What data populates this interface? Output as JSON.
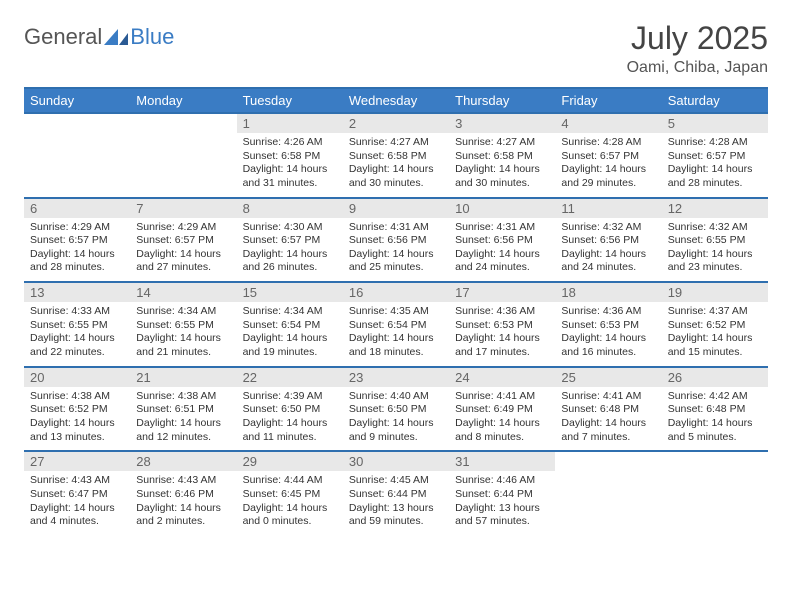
{
  "logo": {
    "text1": "General",
    "text2": "Blue"
  },
  "title": "July 2025",
  "location": "Oami, Chiba, Japan",
  "colors": {
    "header_bg": "#3a7cc4",
    "border": "#2f6faf",
    "daynum_bg": "#e8e8e8",
    "text": "#333333",
    "logo_gray": "#555555",
    "logo_blue": "#3a7cc4",
    "page_bg": "#ffffff"
  },
  "weekdays": [
    "Sunday",
    "Monday",
    "Tuesday",
    "Wednesday",
    "Thursday",
    "Friday",
    "Saturday"
  ],
  "weeks": [
    [
      {
        "n": "",
        "sr": "",
        "ss": "",
        "dl": ""
      },
      {
        "n": "",
        "sr": "",
        "ss": "",
        "dl": ""
      },
      {
        "n": "1",
        "sr": "Sunrise: 4:26 AM",
        "ss": "Sunset: 6:58 PM",
        "dl": "Daylight: 14 hours and 31 minutes."
      },
      {
        "n": "2",
        "sr": "Sunrise: 4:27 AM",
        "ss": "Sunset: 6:58 PM",
        "dl": "Daylight: 14 hours and 30 minutes."
      },
      {
        "n": "3",
        "sr": "Sunrise: 4:27 AM",
        "ss": "Sunset: 6:58 PM",
        "dl": "Daylight: 14 hours and 30 minutes."
      },
      {
        "n": "4",
        "sr": "Sunrise: 4:28 AM",
        "ss": "Sunset: 6:57 PM",
        "dl": "Daylight: 14 hours and 29 minutes."
      },
      {
        "n": "5",
        "sr": "Sunrise: 4:28 AM",
        "ss": "Sunset: 6:57 PM",
        "dl": "Daylight: 14 hours and 28 minutes."
      }
    ],
    [
      {
        "n": "6",
        "sr": "Sunrise: 4:29 AM",
        "ss": "Sunset: 6:57 PM",
        "dl": "Daylight: 14 hours and 28 minutes."
      },
      {
        "n": "7",
        "sr": "Sunrise: 4:29 AM",
        "ss": "Sunset: 6:57 PM",
        "dl": "Daylight: 14 hours and 27 minutes."
      },
      {
        "n": "8",
        "sr": "Sunrise: 4:30 AM",
        "ss": "Sunset: 6:57 PM",
        "dl": "Daylight: 14 hours and 26 minutes."
      },
      {
        "n": "9",
        "sr": "Sunrise: 4:31 AM",
        "ss": "Sunset: 6:56 PM",
        "dl": "Daylight: 14 hours and 25 minutes."
      },
      {
        "n": "10",
        "sr": "Sunrise: 4:31 AM",
        "ss": "Sunset: 6:56 PM",
        "dl": "Daylight: 14 hours and 24 minutes."
      },
      {
        "n": "11",
        "sr": "Sunrise: 4:32 AM",
        "ss": "Sunset: 6:56 PM",
        "dl": "Daylight: 14 hours and 24 minutes."
      },
      {
        "n": "12",
        "sr": "Sunrise: 4:32 AM",
        "ss": "Sunset: 6:55 PM",
        "dl": "Daylight: 14 hours and 23 minutes."
      }
    ],
    [
      {
        "n": "13",
        "sr": "Sunrise: 4:33 AM",
        "ss": "Sunset: 6:55 PM",
        "dl": "Daylight: 14 hours and 22 minutes."
      },
      {
        "n": "14",
        "sr": "Sunrise: 4:34 AM",
        "ss": "Sunset: 6:55 PM",
        "dl": "Daylight: 14 hours and 21 minutes."
      },
      {
        "n": "15",
        "sr": "Sunrise: 4:34 AM",
        "ss": "Sunset: 6:54 PM",
        "dl": "Daylight: 14 hours and 19 minutes."
      },
      {
        "n": "16",
        "sr": "Sunrise: 4:35 AM",
        "ss": "Sunset: 6:54 PM",
        "dl": "Daylight: 14 hours and 18 minutes."
      },
      {
        "n": "17",
        "sr": "Sunrise: 4:36 AM",
        "ss": "Sunset: 6:53 PM",
        "dl": "Daylight: 14 hours and 17 minutes."
      },
      {
        "n": "18",
        "sr": "Sunrise: 4:36 AM",
        "ss": "Sunset: 6:53 PM",
        "dl": "Daylight: 14 hours and 16 minutes."
      },
      {
        "n": "19",
        "sr": "Sunrise: 4:37 AM",
        "ss": "Sunset: 6:52 PM",
        "dl": "Daylight: 14 hours and 15 minutes."
      }
    ],
    [
      {
        "n": "20",
        "sr": "Sunrise: 4:38 AM",
        "ss": "Sunset: 6:52 PM",
        "dl": "Daylight: 14 hours and 13 minutes."
      },
      {
        "n": "21",
        "sr": "Sunrise: 4:38 AM",
        "ss": "Sunset: 6:51 PM",
        "dl": "Daylight: 14 hours and 12 minutes."
      },
      {
        "n": "22",
        "sr": "Sunrise: 4:39 AM",
        "ss": "Sunset: 6:50 PM",
        "dl": "Daylight: 14 hours and 11 minutes."
      },
      {
        "n": "23",
        "sr": "Sunrise: 4:40 AM",
        "ss": "Sunset: 6:50 PM",
        "dl": "Daylight: 14 hours and 9 minutes."
      },
      {
        "n": "24",
        "sr": "Sunrise: 4:41 AM",
        "ss": "Sunset: 6:49 PM",
        "dl": "Daylight: 14 hours and 8 minutes."
      },
      {
        "n": "25",
        "sr": "Sunrise: 4:41 AM",
        "ss": "Sunset: 6:48 PM",
        "dl": "Daylight: 14 hours and 7 minutes."
      },
      {
        "n": "26",
        "sr": "Sunrise: 4:42 AM",
        "ss": "Sunset: 6:48 PM",
        "dl": "Daylight: 14 hours and 5 minutes."
      }
    ],
    [
      {
        "n": "27",
        "sr": "Sunrise: 4:43 AM",
        "ss": "Sunset: 6:47 PM",
        "dl": "Daylight: 14 hours and 4 minutes."
      },
      {
        "n": "28",
        "sr": "Sunrise: 4:43 AM",
        "ss": "Sunset: 6:46 PM",
        "dl": "Daylight: 14 hours and 2 minutes."
      },
      {
        "n": "29",
        "sr": "Sunrise: 4:44 AM",
        "ss": "Sunset: 6:45 PM",
        "dl": "Daylight: 14 hours and 0 minutes."
      },
      {
        "n": "30",
        "sr": "Sunrise: 4:45 AM",
        "ss": "Sunset: 6:44 PM",
        "dl": "Daylight: 13 hours and 59 minutes."
      },
      {
        "n": "31",
        "sr": "Sunrise: 4:46 AM",
        "ss": "Sunset: 6:44 PM",
        "dl": "Daylight: 13 hours and 57 minutes."
      },
      {
        "n": "",
        "sr": "",
        "ss": "",
        "dl": ""
      },
      {
        "n": "",
        "sr": "",
        "ss": "",
        "dl": ""
      }
    ]
  ]
}
